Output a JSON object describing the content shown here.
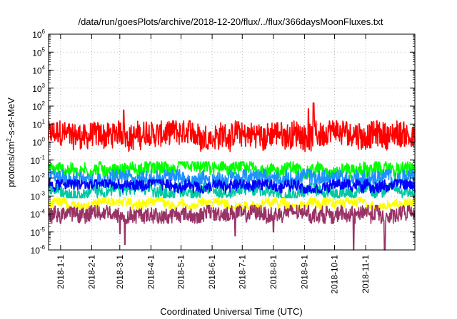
{
  "chart_data": {
    "type": "line",
    "title": "/data/run/goesPlots/archive/2018-12-20/flux/../flux/366daysMoonFluxes.txt",
    "xlabel": "Coordinated Universal Time (UTC)",
    "ylabel_parts": {
      "pre": "protons/cm",
      "sup": "2",
      "post": "-s-sr-MeV"
    },
    "y_scale": "log",
    "ylim": [
      1e-06,
      1000000.0
    ],
    "xlim": [
      "2017-12-20",
      "2018-12-20"
    ],
    "grid": true,
    "x_tick_labels": [
      "2018-1-1",
      "2018-2-1",
      "2018-3-1",
      "2018-4-1",
      "2018-5-1",
      "2018-6-1",
      "2018-7-1",
      "2018-8-1",
      "2018-9-1",
      "2018-10-1",
      "2018-11-1"
    ],
    "y_ticks": [
      {
        "base": "10",
        "exp": "-6"
      },
      {
        "base": "10",
        "exp": "-5"
      },
      {
        "base": "10",
        "exp": "-4"
      },
      {
        "base": "10",
        "exp": "-3"
      },
      {
        "base": "10",
        "exp": "-2"
      },
      {
        "base": "10",
        "exp": "-1"
      },
      {
        "base": "10",
        "exp": "0"
      },
      {
        "base": "10",
        "exp": "1"
      },
      {
        "base": "10",
        "exp": "2"
      },
      {
        "base": "10",
        "exp": "3"
      },
      {
        "base": "10",
        "exp": "4"
      },
      {
        "base": "10",
        "exp": "5"
      },
      {
        "base": "10",
        "exp": "6"
      }
    ],
    "series": [
      {
        "color": "#ff0000",
        "typical": 2.5,
        "low": 0.3,
        "high": 15,
        "spikes": [
          {
            "date": "2018-3-5",
            "value": 60
          },
          {
            "date": "2018-9-10",
            "value": 150
          },
          {
            "date": "2018-9-5",
            "value": 70
          }
        ]
      },
      {
        "color": "#00ff00",
        "typical": 0.03,
        "low": 0.01,
        "high": 0.08
      },
      {
        "color": "#1e90ff",
        "typical": 0.01,
        "low": 0.003,
        "high": 0.03
      },
      {
        "color": "#00c8a0",
        "typical": 0.002,
        "low": 0.0008,
        "high": 0.005
      },
      {
        "color": "#0000ff",
        "typical": 0.004,
        "low": 0.0015,
        "high": 0.008
      },
      {
        "color": "#ffff00",
        "typical": 0.0004,
        "low": 0.0002,
        "high": 0.0008
      },
      {
        "color": "#993366",
        "typical": 0.0001,
        "low": 3e-05,
        "high": 0.0003,
        "dips": [
          {
            "date": "2018-3-1",
            "value": 8e-06
          },
          {
            "date": "2018-3-6",
            "value": 2e-06
          },
          {
            "date": "2018-6-24",
            "value": 6e-06
          },
          {
            "date": "2018-8-1",
            "value": 1e-05
          },
          {
            "date": "2018-10-20",
            "value": 1e-06
          },
          {
            "date": "2018-11-20",
            "value": 1e-06
          }
        ]
      }
    ]
  }
}
